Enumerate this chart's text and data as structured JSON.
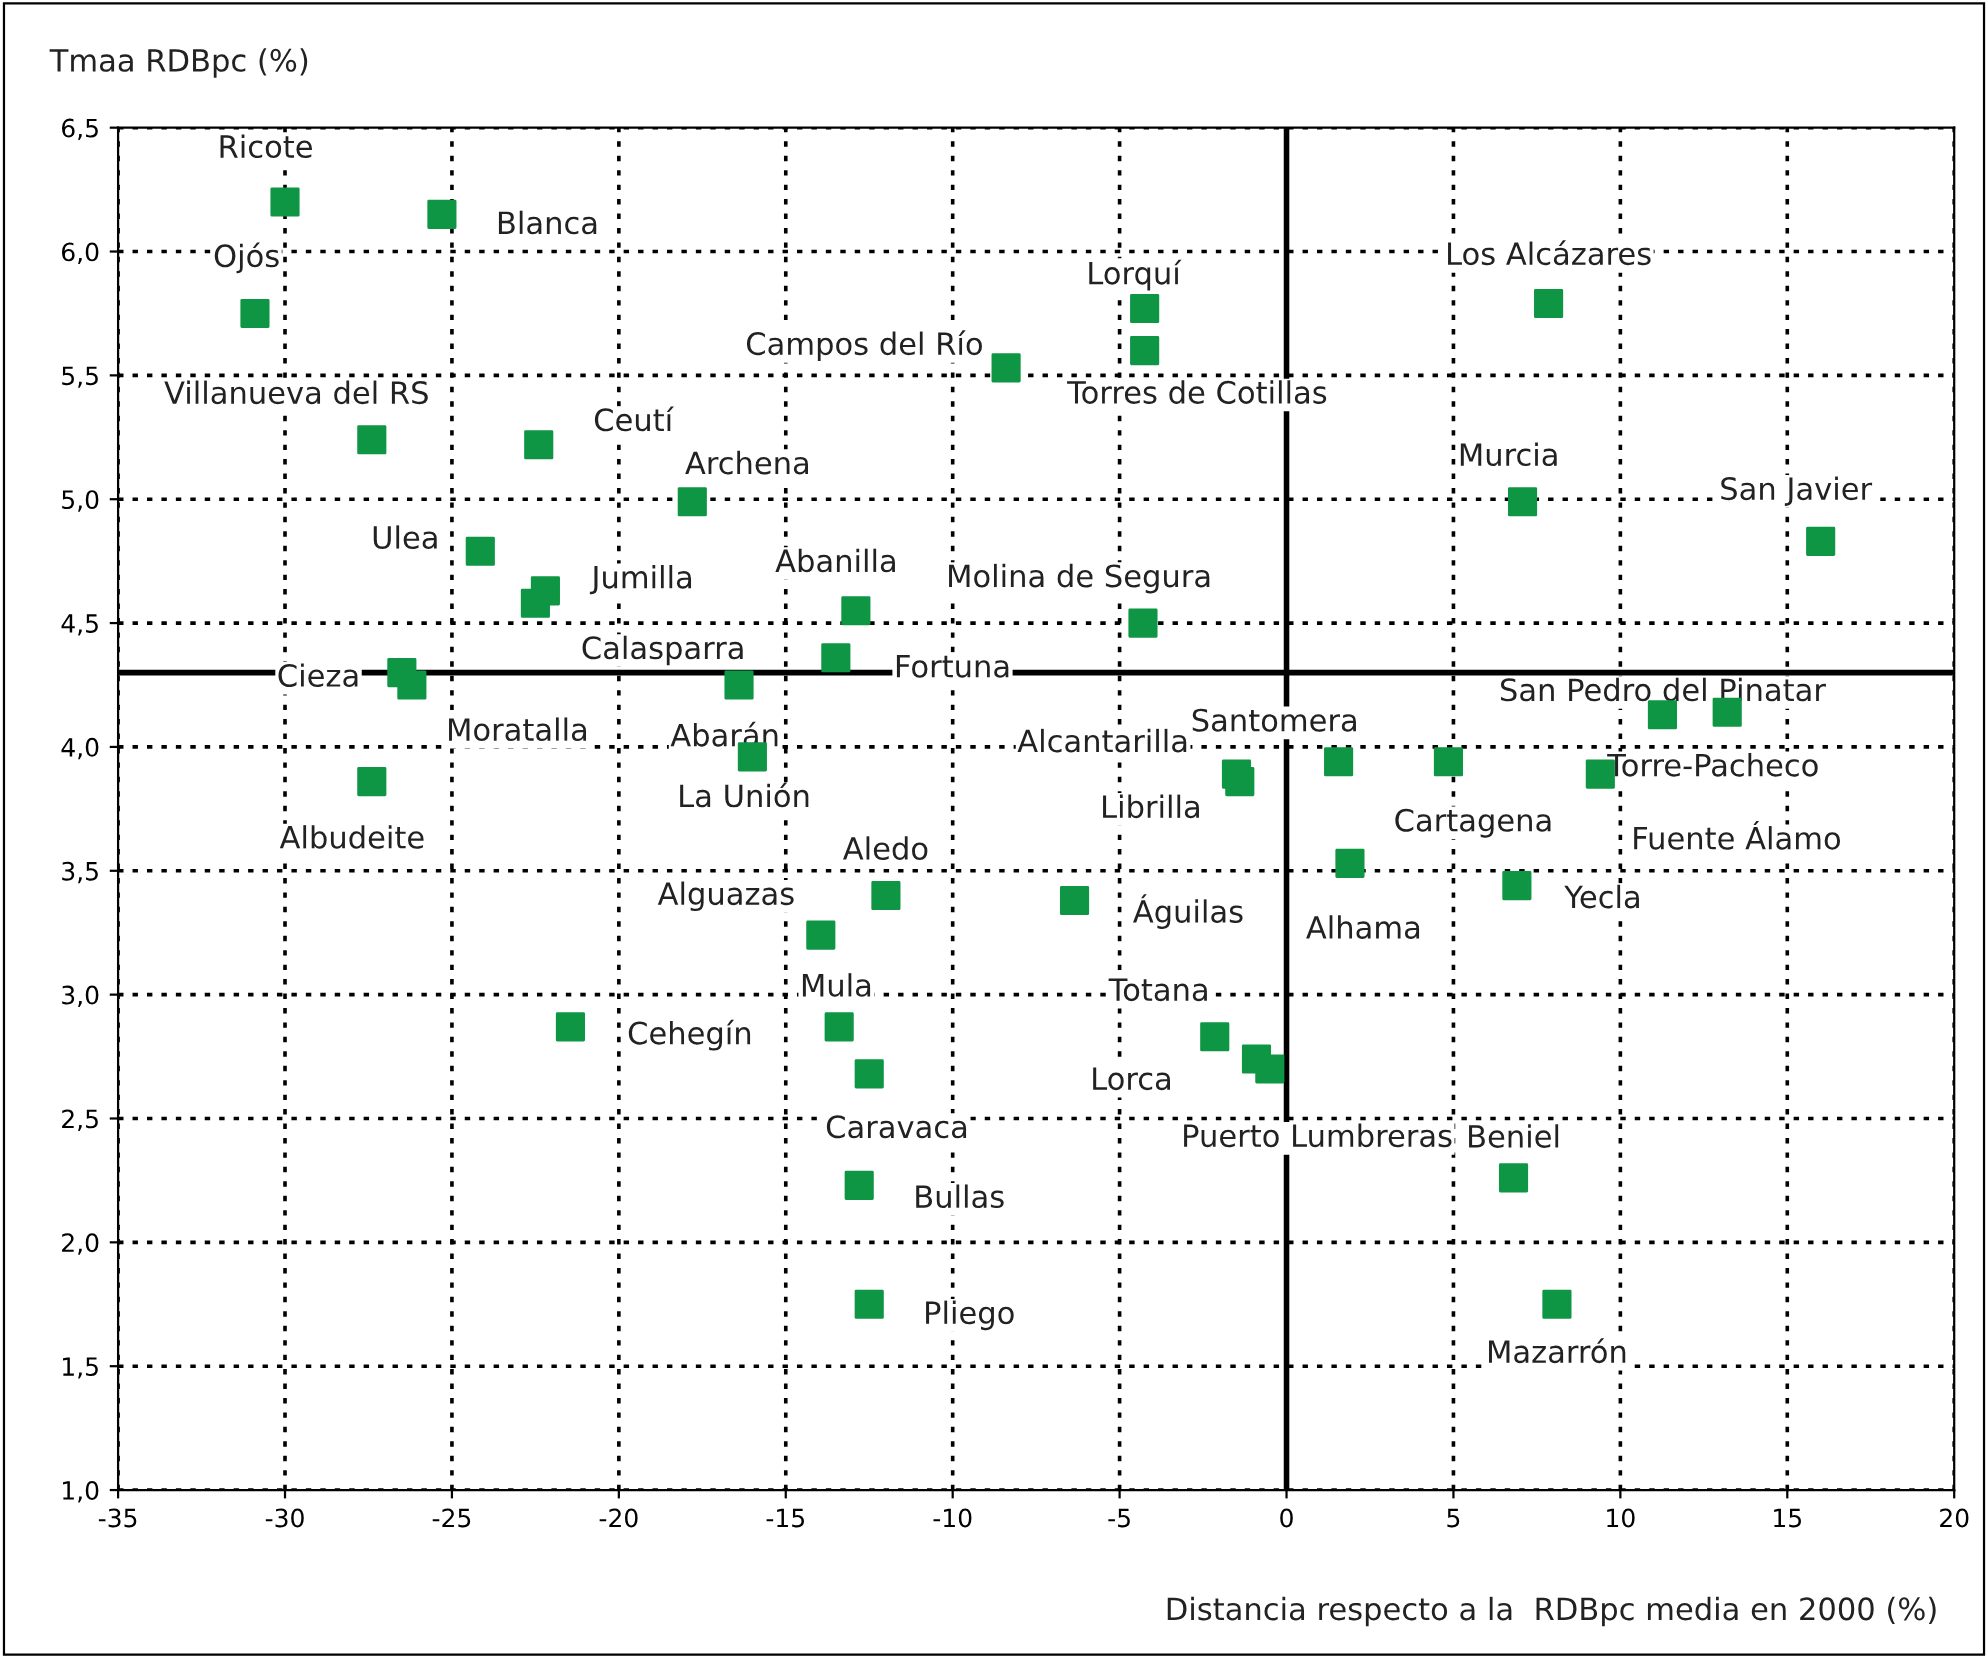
{
  "chart_data": {
    "type": "scatter",
    "xlabel": "Distancia respecto a la  RDBpc media en 2000 (%)",
    "ylabel": "Tmaa RDBpc (%)",
    "xlim": [
      -35,
      20
    ],
    "ylim": [
      1.0,
      6.5
    ],
    "xticks": [
      -35,
      -30,
      -25,
      -20,
      -15,
      -10,
      -5,
      0,
      5,
      10,
      15,
      20
    ],
    "yticks": [
      {
        "value": 1.0,
        "label": "1,0"
      },
      {
        "value": 1.5,
        "label": "1,5"
      },
      {
        "value": 2.0,
        "label": "2,0"
      },
      {
        "value": 2.5,
        "label": "2,5"
      },
      {
        "value": 3.0,
        "label": "3,0"
      },
      {
        "value": 3.5,
        "label": "3,5"
      },
      {
        "value": 4.0,
        "label": "4,0"
      },
      {
        "value": 4.5,
        "label": "4,5"
      },
      {
        "value": 5.0,
        "label": "5,0"
      },
      {
        "value": 5.5,
        "label": "5,5"
      },
      {
        "value": 6.0,
        "label": "6,0"
      },
      {
        "value": 6.5,
        "label": "6,5"
      }
    ],
    "grid": true,
    "marker": "square",
    "legend": false,
    "ref_lines": [
      {
        "axis": "x",
        "value": 0,
        "color": "#000000"
      },
      {
        "axis": "y",
        "value": 4.3,
        "color": "#000000"
      }
    ],
    "series": [
      {
        "color": "#0e9644",
        "x": [
          -30.0,
          -25.3,
          -30.9,
          -4.25,
          7.85,
          -8.4,
          -4.25,
          -27.4,
          -22.4,
          -17.8,
          7.07,
          16.0,
          -24.15,
          -22.2,
          -22.5,
          -12.9,
          -4.3,
          -13.5,
          -26.5,
          -26.2,
          -16.4,
          11.26,
          13.2,
          -16.0,
          1.56,
          4.85,
          9.4,
          -1.5,
          -1.4,
          -27.4,
          1.9,
          6.9,
          -12.0,
          -6.35,
          -13.95,
          -21.45,
          -13.4,
          -2.15,
          -0.9,
          -0.5,
          -12.5,
          6.8,
          -12.8,
          -12.5,
          8.1
        ],
        "values": [
          6.2,
          6.15,
          5.75,
          5.77,
          5.79,
          5.53,
          5.6,
          5.24,
          5.22,
          4.99,
          4.99,
          4.83,
          4.79,
          4.63,
          4.58,
          4.55,
          4.5,
          4.36,
          4.3,
          4.25,
          4.25,
          4.13,
          4.14,
          3.96,
          3.94,
          3.94,
          3.89,
          3.89,
          3.86,
          3.86,
          3.53,
          3.44,
          3.4,
          3.38,
          3.24,
          2.87,
          2.87,
          2.83,
          2.74,
          2.7,
          2.68,
          2.26,
          2.23,
          1.75,
          1.75
        ]
      }
    ],
    "annotations": [
      {
        "text": "Ricote",
        "x": -30.0,
        "y": 6.2
      },
      {
        "text": "Blanca",
        "x": -25.3,
        "y": 6.15
      },
      {
        "text": "Ojós",
        "x": -30.9,
        "y": 5.75
      },
      {
        "text": "Lorquí",
        "x": -4.25,
        "y": 5.77
      },
      {
        "text": "Los Alcázares",
        "x": 7.85,
        "y": 5.79
      },
      {
        "text": "Campos del Río",
        "x": -8.4,
        "y": 5.53
      },
      {
        "text": "Torres de Cotillas",
        "x": -4.25,
        "y": 5.6
      },
      {
        "text": "Villanueva del RS",
        "x": -27.4,
        "y": 5.24
      },
      {
        "text": "Ceutí",
        "x": -22.4,
        "y": 5.22
      },
      {
        "text": "Archena",
        "x": -17.8,
        "y": 4.99
      },
      {
        "text": "Murcia",
        "x": 7.07,
        "y": 4.99
      },
      {
        "text": "San Javier",
        "x": 16.0,
        "y": 4.83
      },
      {
        "text": "Ulea",
        "x": -24.15,
        "y": 4.79
      },
      {
        "text": "Jumilla",
        "x": -22.2,
        "y": 4.63
      },
      {
        "text": "Calasparra",
        "x": -22.5,
        "y": 4.58
      },
      {
        "text": "Abanilla",
        "x": -12.9,
        "y": 4.55
      },
      {
        "text": "Molina de Segura",
        "x": -4.3,
        "y": 4.5
      },
      {
        "text": "Fortuna",
        "x": -13.5,
        "y": 4.36
      },
      {
        "text": "Cieza",
        "x": -26.5,
        "y": 4.3
      },
      {
        "text": "Moratalla",
        "x": -26.2,
        "y": 4.25
      },
      {
        "text": "Abarán",
        "x": -16.4,
        "y": 4.25
      },
      {
        "text": "San Pedro del Pinatar",
        "x": 11.26,
        "y": 4.13
      },
      {
        "text": "Torre-Pacheco",
        "x": 13.2,
        "y": 4.14
      },
      {
        "text": "La Unión",
        "x": -16.0,
        "y": 3.96
      },
      {
        "text": "Santomera",
        "x": 1.56,
        "y": 3.94
      },
      {
        "text": "Cartagena",
        "x": 4.85,
        "y": 3.94
      },
      {
        "text": "Fuente Álamo",
        "x": 9.4,
        "y": 3.89
      },
      {
        "text": "Alcantarilla",
        "x": -1.5,
        "y": 3.89
      },
      {
        "text": "Librilla",
        "x": -1.4,
        "y": 3.86
      },
      {
        "text": "Albudeite",
        "x": -27.4,
        "y": 3.86
      },
      {
        "text": "Alhama",
        "x": 1.9,
        "y": 3.53
      },
      {
        "text": "Yecla",
        "x": 6.9,
        "y": 3.44
      },
      {
        "text": "Aledo",
        "x": -12.0,
        "y": 3.4
      },
      {
        "text": "Águilas",
        "x": -6.35,
        "y": 3.38
      },
      {
        "text": "Alguazas",
        "x": -13.95,
        "y": 3.24
      },
      {
        "text": "Cehegín",
        "x": -21.45,
        "y": 2.87
      },
      {
        "text": "Mula",
        "x": -13.4,
        "y": 2.87
      },
      {
        "text": "Totana",
        "x": -2.15,
        "y": 2.83
      },
      {
        "text": "Lorca",
        "x": -0.9,
        "y": 2.74
      },
      {
        "text": "Puerto Lumbreras",
        "x": -0.5,
        "y": 2.7
      },
      {
        "text": "Caravaca",
        "x": -12.5,
        "y": 2.68
      },
      {
        "text": "Beniel",
        "x": 6.8,
        "y": 2.26
      },
      {
        "text": "Bullas",
        "x": -12.8,
        "y": 2.23
      },
      {
        "text": "Pliego",
        "x": -12.5,
        "y": 1.75
      },
      {
        "text": "Mazarrón",
        "x": 8.1,
        "y": 1.75
      }
    ]
  }
}
